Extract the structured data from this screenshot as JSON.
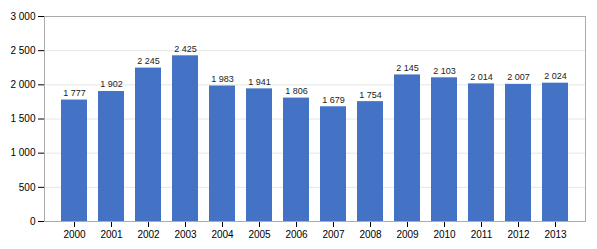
{
  "chart_data": {
    "type": "bar",
    "categories": [
      "2000",
      "2001",
      "2002",
      "2003",
      "2004",
      "2005",
      "2006",
      "2007",
      "2008",
      "2009",
      "2010",
      "2011",
      "2012",
      "2013"
    ],
    "values": [
      1777,
      1902,
      2245,
      2425,
      1983,
      1941,
      1806,
      1679,
      1754,
      2145,
      2103,
      2014,
      2007,
      2024
    ],
    "value_labels": [
      "1 777",
      "1 902",
      "2 245",
      "2 425",
      "1 983",
      "1 941",
      "1 806",
      "1 679",
      "1 754",
      "2 145",
      "2 103",
      "2 014",
      "2 007",
      "2 024"
    ],
    "data_labels": true,
    "color": "#4472C4",
    "ylim": [
      0,
      3000
    ],
    "yticks": [
      0,
      500,
      {
        "value": 1000,
        "label": "1 000"
      },
      {
        "value": 1500,
        "label": "1 500"
      },
      {
        "value": 2000,
        "label": "2 000"
      },
      {
        "value": 2500,
        "label": "2 500"
      },
      {
        "value": 3000,
        "label": "3 000"
      }
    ],
    "grid": true
  }
}
